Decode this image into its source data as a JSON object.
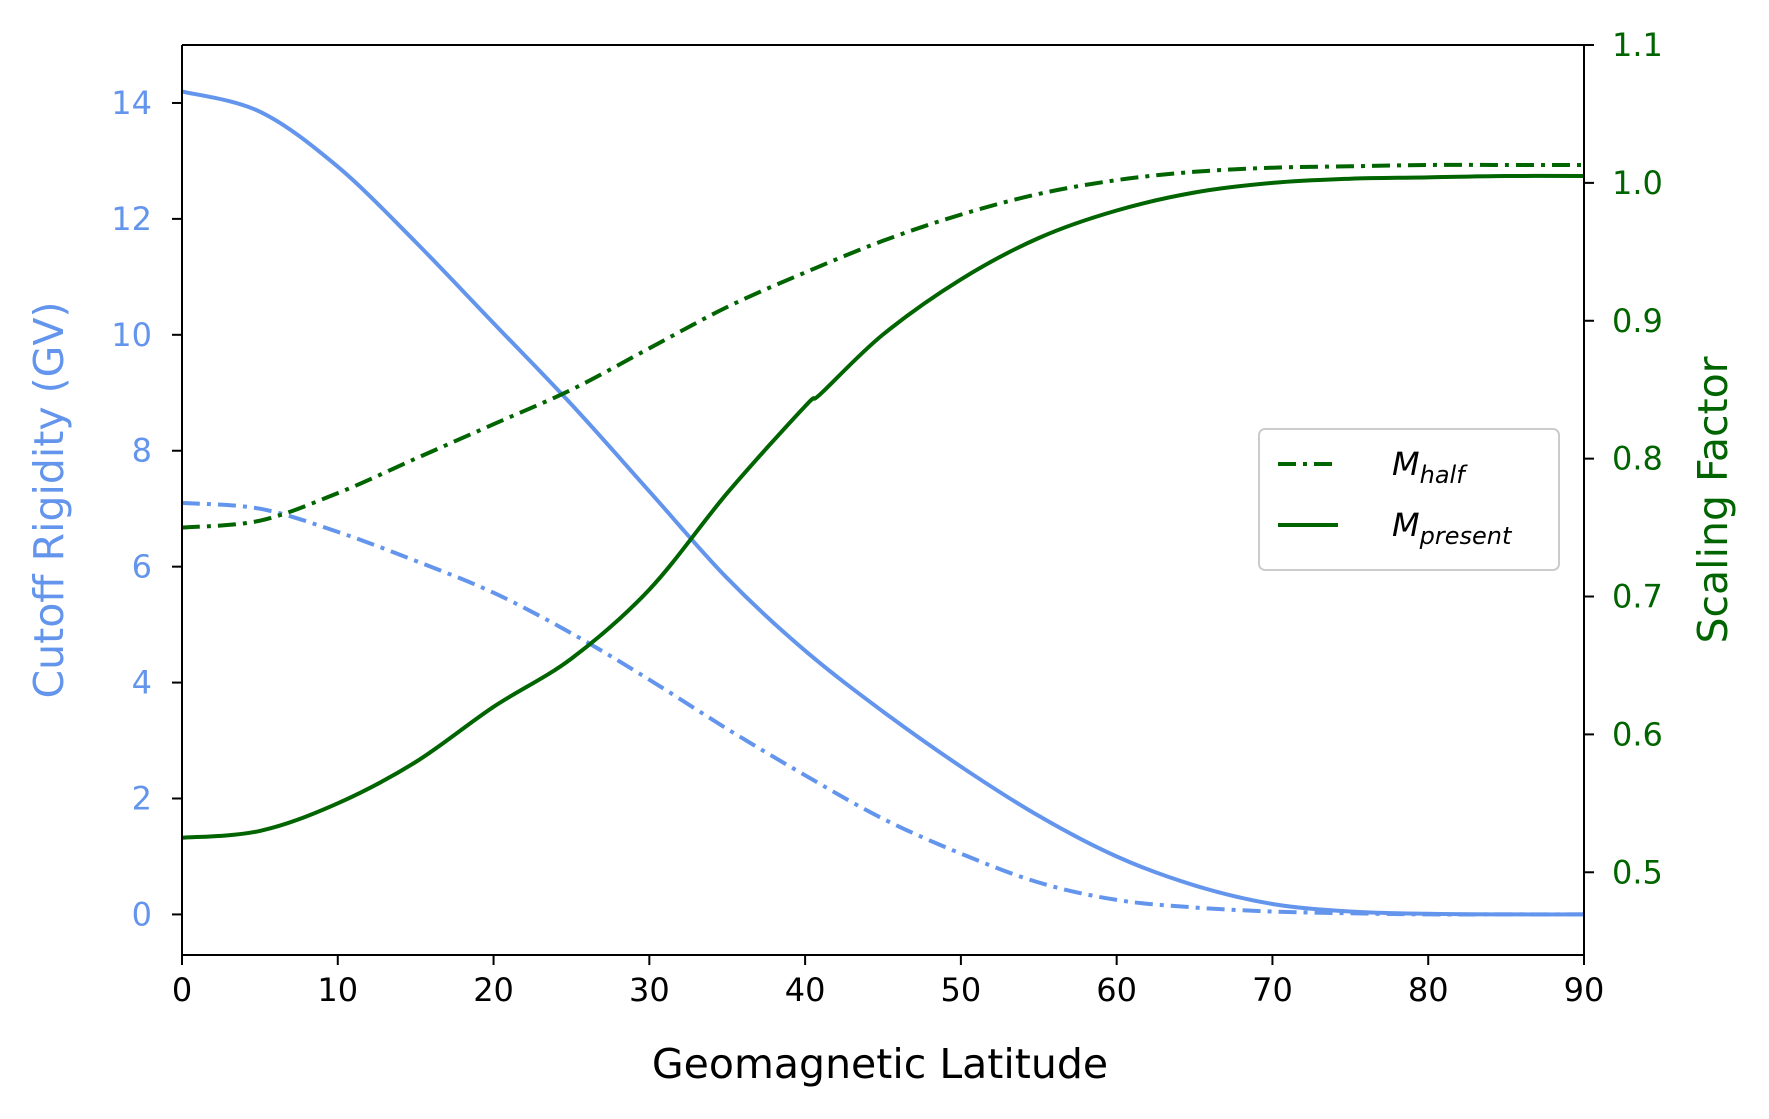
{
  "chart_data": {
    "type": "line",
    "xlabel": "Geomagnetic Latitude",
    "ylabel_left": "Cutoff Rigidity (GV)",
    "ylabel_right": "Scaling Factor",
    "xlim": [
      0,
      90
    ],
    "ylim_left": [
      -0.7,
      15
    ],
    "ylim_right": [
      0.44,
      1.1
    ],
    "xticks": [
      "0",
      "10",
      "20",
      "30",
      "40",
      "50",
      "60",
      "70",
      "80",
      "90"
    ],
    "yticks_left": [
      "0",
      "2",
      "4",
      "6",
      "8",
      "10",
      "12",
      "14"
    ],
    "yticks_right": [
      "0.5",
      "0.6",
      "0.7",
      "0.8",
      "0.9",
      "1.0",
      "1.1"
    ],
    "grid": false,
    "legend_position": "center-right",
    "colors": {
      "left_axis": "#6495ED",
      "right_axis": "#006400"
    },
    "legend": [
      {
        "base": "M",
        "sub": "half",
        "style": "dash-dot"
      },
      {
        "base": "M",
        "sub": "present",
        "style": "solid"
      }
    ],
    "series": [
      {
        "axis": "left",
        "style": "solid",
        "color": "#6495ED",
        "x": [
          0,
          5,
          10,
          15,
          20,
          25,
          30,
          35,
          40,
          45,
          50,
          55,
          60,
          65,
          70,
          75,
          80,
          85,
          90
        ],
        "y": [
          14.2,
          13.85,
          12.9,
          11.6,
          10.2,
          8.8,
          7.3,
          5.8,
          4.55,
          3.5,
          2.55,
          1.7,
          1.0,
          0.5,
          0.18,
          0.05,
          0.01,
          0.0,
          0.0
        ]
      },
      {
        "axis": "left",
        "style": "dash-dot",
        "color": "#6495ED",
        "x": [
          0,
          5,
          10,
          15,
          20,
          25,
          30,
          35,
          40,
          45,
          50,
          55,
          60,
          65,
          70,
          75,
          80,
          85,
          90
        ],
        "y": [
          7.1,
          7.0,
          6.6,
          6.1,
          5.55,
          4.85,
          4.05,
          3.2,
          2.4,
          1.65,
          1.05,
          0.55,
          0.25,
          0.12,
          0.05,
          0.02,
          0.0,
          0.0,
          0.0
        ]
      },
      {
        "axis": "right",
        "style": "dash-dot",
        "color": "#006400",
        "x": [
          0,
          5,
          10,
          15,
          20,
          25,
          30,
          35,
          40,
          45,
          50,
          55,
          60,
          65,
          70,
          75,
          80,
          85,
          90
        ],
        "y": [
          0.75,
          0.755,
          0.775,
          0.8,
          0.825,
          0.85,
          0.88,
          0.91,
          0.935,
          0.958,
          0.977,
          0.992,
          1.002,
          1.008,
          1.011,
          1.012,
          1.013,
          1.013,
          1.013
        ]
      },
      {
        "axis": "right",
        "style": "solid",
        "color": "#006400",
        "x": [
          0,
          5,
          10,
          15,
          20,
          25,
          30,
          35,
          40,
          41,
          45,
          50,
          55,
          60,
          65,
          70,
          75,
          80,
          85,
          90
        ],
        "y": [
          0.525,
          0.53,
          0.55,
          0.58,
          0.62,
          0.655,
          0.705,
          0.775,
          0.838,
          0.847,
          0.89,
          0.93,
          0.96,
          0.98,
          0.993,
          1.0,
          1.003,
          1.004,
          1.005,
          1.005
        ]
      }
    ]
  }
}
